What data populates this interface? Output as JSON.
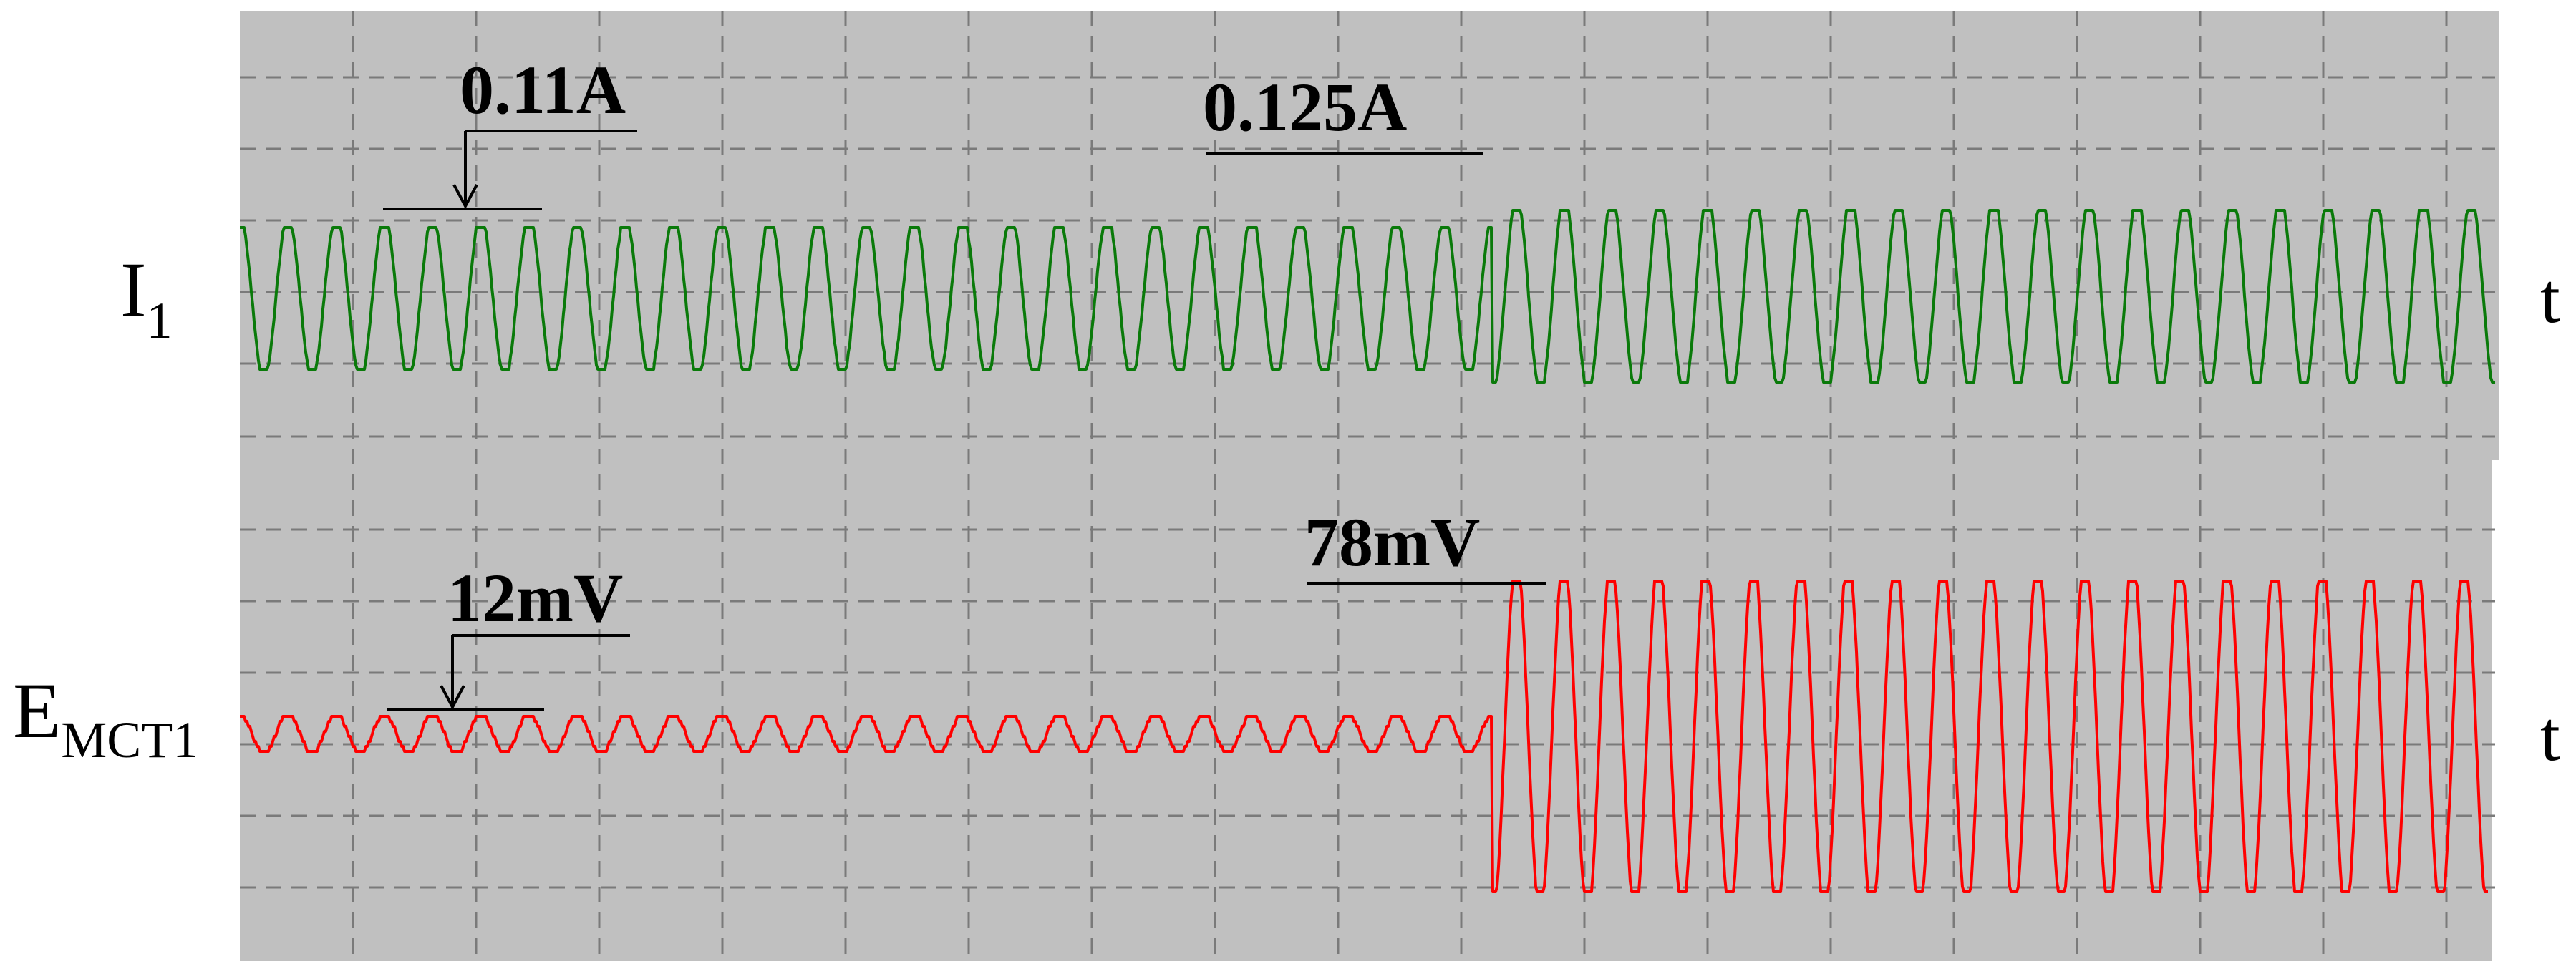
{
  "chart_data": {
    "type": "line",
    "grid": true,
    "colors": {
      "background": "#c0c0c0",
      "grid": "#7a7a7a",
      "i1": "#0a7a0a",
      "emct1": "#ff0000",
      "annotation": "#000000"
    },
    "channels": [
      {
        "name": "I",
        "subscript": "1",
        "axis_label": "t",
        "color": "#0a7a0a",
        "unit": "A",
        "cycles_before_step": 26,
        "cycles_after_step": 21,
        "amplitude_before": 0.11,
        "amplitude_after": 0.125,
        "annotations": [
          {
            "text": "0.11A",
            "value": 0.11,
            "arrow": true
          },
          {
            "text": "0.125A",
            "value": 0.125,
            "arrow": false
          }
        ]
      },
      {
        "name": "E",
        "subscript": "MCT1",
        "axis_label": "t",
        "color": "#ff0000",
        "unit": "mV",
        "cycles_before_step": 26,
        "cycles_after_step": 21,
        "amplitude_before": 12,
        "amplitude_after": 78,
        "annotations": [
          {
            "text": "12mV",
            "value": 12,
            "arrow": true
          },
          {
            "text": "78mV",
            "value": 78,
            "arrow": false
          }
        ]
      }
    ]
  }
}
